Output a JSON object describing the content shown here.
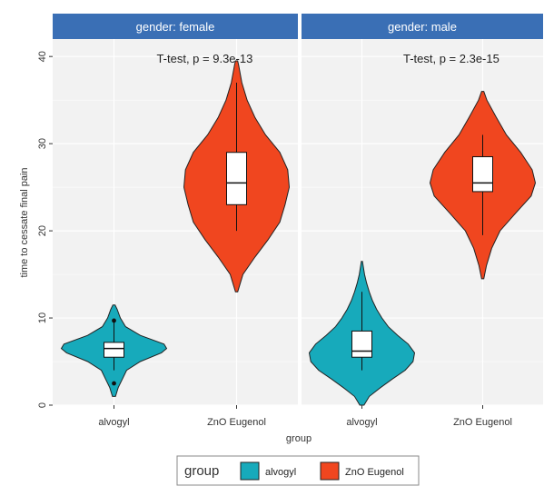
{
  "chart_data": {
    "type": "violin",
    "title": "",
    "xlabel": "group",
    "ylabel": "time to cessate final pain",
    "ylim": [
      0,
      42
    ],
    "yticks": [
      0,
      10,
      20,
      30,
      40
    ],
    "categories": [
      "alvogyl",
      "ZnO Eugenol"
    ],
    "facet_label": "gender",
    "panels": [
      {
        "strip": "gender: female",
        "annotation": "T-test, p = 9.3e-13",
        "groups": [
          {
            "category": "alvogyl",
            "min": 1,
            "max": 11.5,
            "q1": 5.5,
            "median": 6.5,
            "q3": 7.2,
            "whisker_low": 4,
            "whisker_high": 9.5,
            "outliers": [
              2.5,
              9.7
            ],
            "density": [
              [
                1,
                0.03
              ],
              [
                2,
                0.08
              ],
              [
                3,
                0.16
              ],
              [
                4,
                0.24
              ],
              [
                5,
                0.5
              ],
              [
                6,
                0.9
              ],
              [
                6.5,
                1.0
              ],
              [
                7,
                0.95
              ],
              [
                8,
                0.5
              ],
              [
                9,
                0.22
              ],
              [
                10,
                0.12
              ],
              [
                11,
                0.06
              ],
              [
                11.5,
                0.02
              ]
            ]
          },
          {
            "category": "ZnO Eugenol",
            "min": 13,
            "max": 39.5,
            "q1": 23,
            "median": 25.5,
            "q3": 29,
            "whisker_low": 20,
            "whisker_high": 37,
            "outliers": [],
            "density": [
              [
                13,
                0.02
              ],
              [
                15,
                0.12
              ],
              [
                17,
                0.35
              ],
              [
                19,
                0.6
              ],
              [
                21,
                0.82
              ],
              [
                23,
                0.92
              ],
              [
                25,
                1.0
              ],
              [
                27,
                0.97
              ],
              [
                29,
                0.82
              ],
              [
                31,
                0.55
              ],
              [
                33,
                0.35
              ],
              [
                35,
                0.2
              ],
              [
                37,
                0.1
              ],
              [
                39,
                0.04
              ],
              [
                39.5,
                0.02
              ]
            ]
          }
        ]
      },
      {
        "strip": "gender: male",
        "annotation": "T-test, p = 2.3e-15",
        "groups": [
          {
            "category": "alvogyl",
            "min": 0,
            "max": 16.5,
            "q1": 5.5,
            "median": 6.2,
            "q3": 8.5,
            "whisker_low": 4,
            "whisker_high": 13,
            "outliers": [],
            "density": [
              [
                0,
                0.04
              ],
              [
                1,
                0.14
              ],
              [
                2,
                0.35
              ],
              [
                3,
                0.58
              ],
              [
                4,
                0.82
              ],
              [
                5,
                0.97
              ],
              [
                6,
                1.0
              ],
              [
                7,
                0.88
              ],
              [
                8,
                0.68
              ],
              [
                9,
                0.5
              ],
              [
                10,
                0.38
              ],
              [
                11,
                0.28
              ],
              [
                12,
                0.2
              ],
              [
                13,
                0.14
              ],
              [
                14,
                0.09
              ],
              [
                15,
                0.05
              ],
              [
                16.5,
                0.01
              ]
            ]
          },
          {
            "category": "ZnO Eugenol",
            "min": 14.5,
            "max": 36,
            "q1": 24.5,
            "median": 25.5,
            "q3": 28.5,
            "whisker_low": 19.5,
            "whisker_high": 31,
            "outliers": [],
            "density": [
              [
                14.5,
                0.02
              ],
              [
                16,
                0.07
              ],
              [
                18,
                0.17
              ],
              [
                20,
                0.33
              ],
              [
                22,
                0.62
              ],
              [
                24,
                0.92
              ],
              [
                25.5,
                1.0
              ],
              [
                27,
                0.94
              ],
              [
                29,
                0.72
              ],
              [
                31,
                0.45
              ],
              [
                33,
                0.26
              ],
              [
                35,
                0.08
              ],
              [
                36,
                0.02
              ]
            ]
          }
        ]
      }
    ],
    "legend": {
      "title": "group",
      "position": "bottom",
      "items": [
        {
          "label": "alvogyl",
          "color": "#17AABB"
        },
        {
          "label": "ZnO Eugenol",
          "color": "#F0461F"
        }
      ]
    },
    "colors": {
      "strip_bg": "#3A6FB5",
      "panel_bg": "#F2F2F2",
      "grid": "#FFFFFF",
      "outline": "#222222"
    },
    "grid": true
  }
}
